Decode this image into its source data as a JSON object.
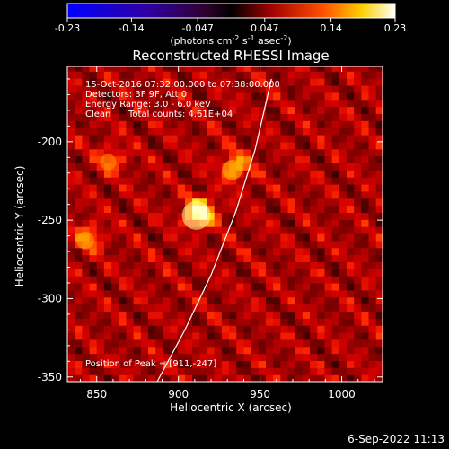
{
  "chart_data": {
    "type": "heatmap",
    "title": "Reconstructed RHESSI Image",
    "xlabel": "Heliocentric X (arcsec)",
    "ylabel": "Heliocentric Y (arcsec)",
    "xlim": [
      832,
      1025
    ],
    "ylim": [
      -353,
      -152
    ],
    "xticks": [
      850,
      900,
      950,
      1000
    ],
    "yticks": [
      -200,
      -250,
      -300,
      -350
    ],
    "colorbar": {
      "min": -0.23,
      "max": 0.23,
      "ticks": [
        "-0.23",
        "-0.14",
        "-0.047",
        "0.047",
        "0.14",
        "0.23"
      ],
      "label": "(photons cm",
      "label_sup1": "-2",
      "label_mid": " s",
      "label_sup2": "-1",
      "label_mid2": " asec",
      "label_sup3": "-2",
      "label_end": ")"
    },
    "annotations": {
      "time": "15-Oct-2016 07:32:00.000 to 07:38:00.000",
      "detectors": "Detectors: 3F 9F, Att 0",
      "energy": "Energy Range: 3.0 - 6.0 keV",
      "clean_label": "Clean",
      "counts": "Total counts: 4.61E+04",
      "peak": "Position of Peak = [911,-247]"
    },
    "peak": [
      911,
      -247
    ],
    "sources": [
      {
        "x": 911,
        "y": -247,
        "amplitude": 0.23
      },
      {
        "x": 933,
        "y": -218,
        "amplitude": 0.12
      },
      {
        "x": 843,
        "y": -263,
        "amplitude": 0.09
      },
      {
        "x": 857,
        "y": -213,
        "amplitude": 0.07
      }
    ],
    "limb_curve": [
      [
        887,
        -353
      ],
      [
        904,
        -320
      ],
      [
        920,
        -285
      ],
      [
        935,
        -245
      ],
      [
        947,
        -205
      ],
      [
        957,
        -160
      ]
    ],
    "date_stamp": "6-Sep-2022 11:13"
  }
}
